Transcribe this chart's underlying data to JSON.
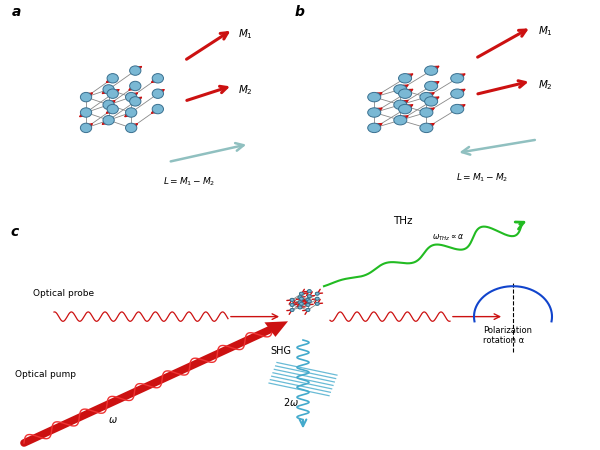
{
  "bg_color": "#ffffff",
  "panel_a_label": "a",
  "panel_b_label": "b",
  "panel_c_label": "c",
  "crystal_color": "#7ab8d4",
  "crystal_edge_color": "#3a7090",
  "crystal_highlight": "#c8e8f4",
  "arrow_color": "#cc1111",
  "M1_color": "#cc1111",
  "M2_color": "#cc1111",
  "L_color": "#90c0c0",
  "green_wave_color": "#22bb22",
  "red_wave_color": "#cc1111",
  "cyan_shg_color": "#44aacc",
  "blue_pol_color": "#1144cc",
  "panel_label_fontsize": 10,
  "label_fontsize": 7
}
